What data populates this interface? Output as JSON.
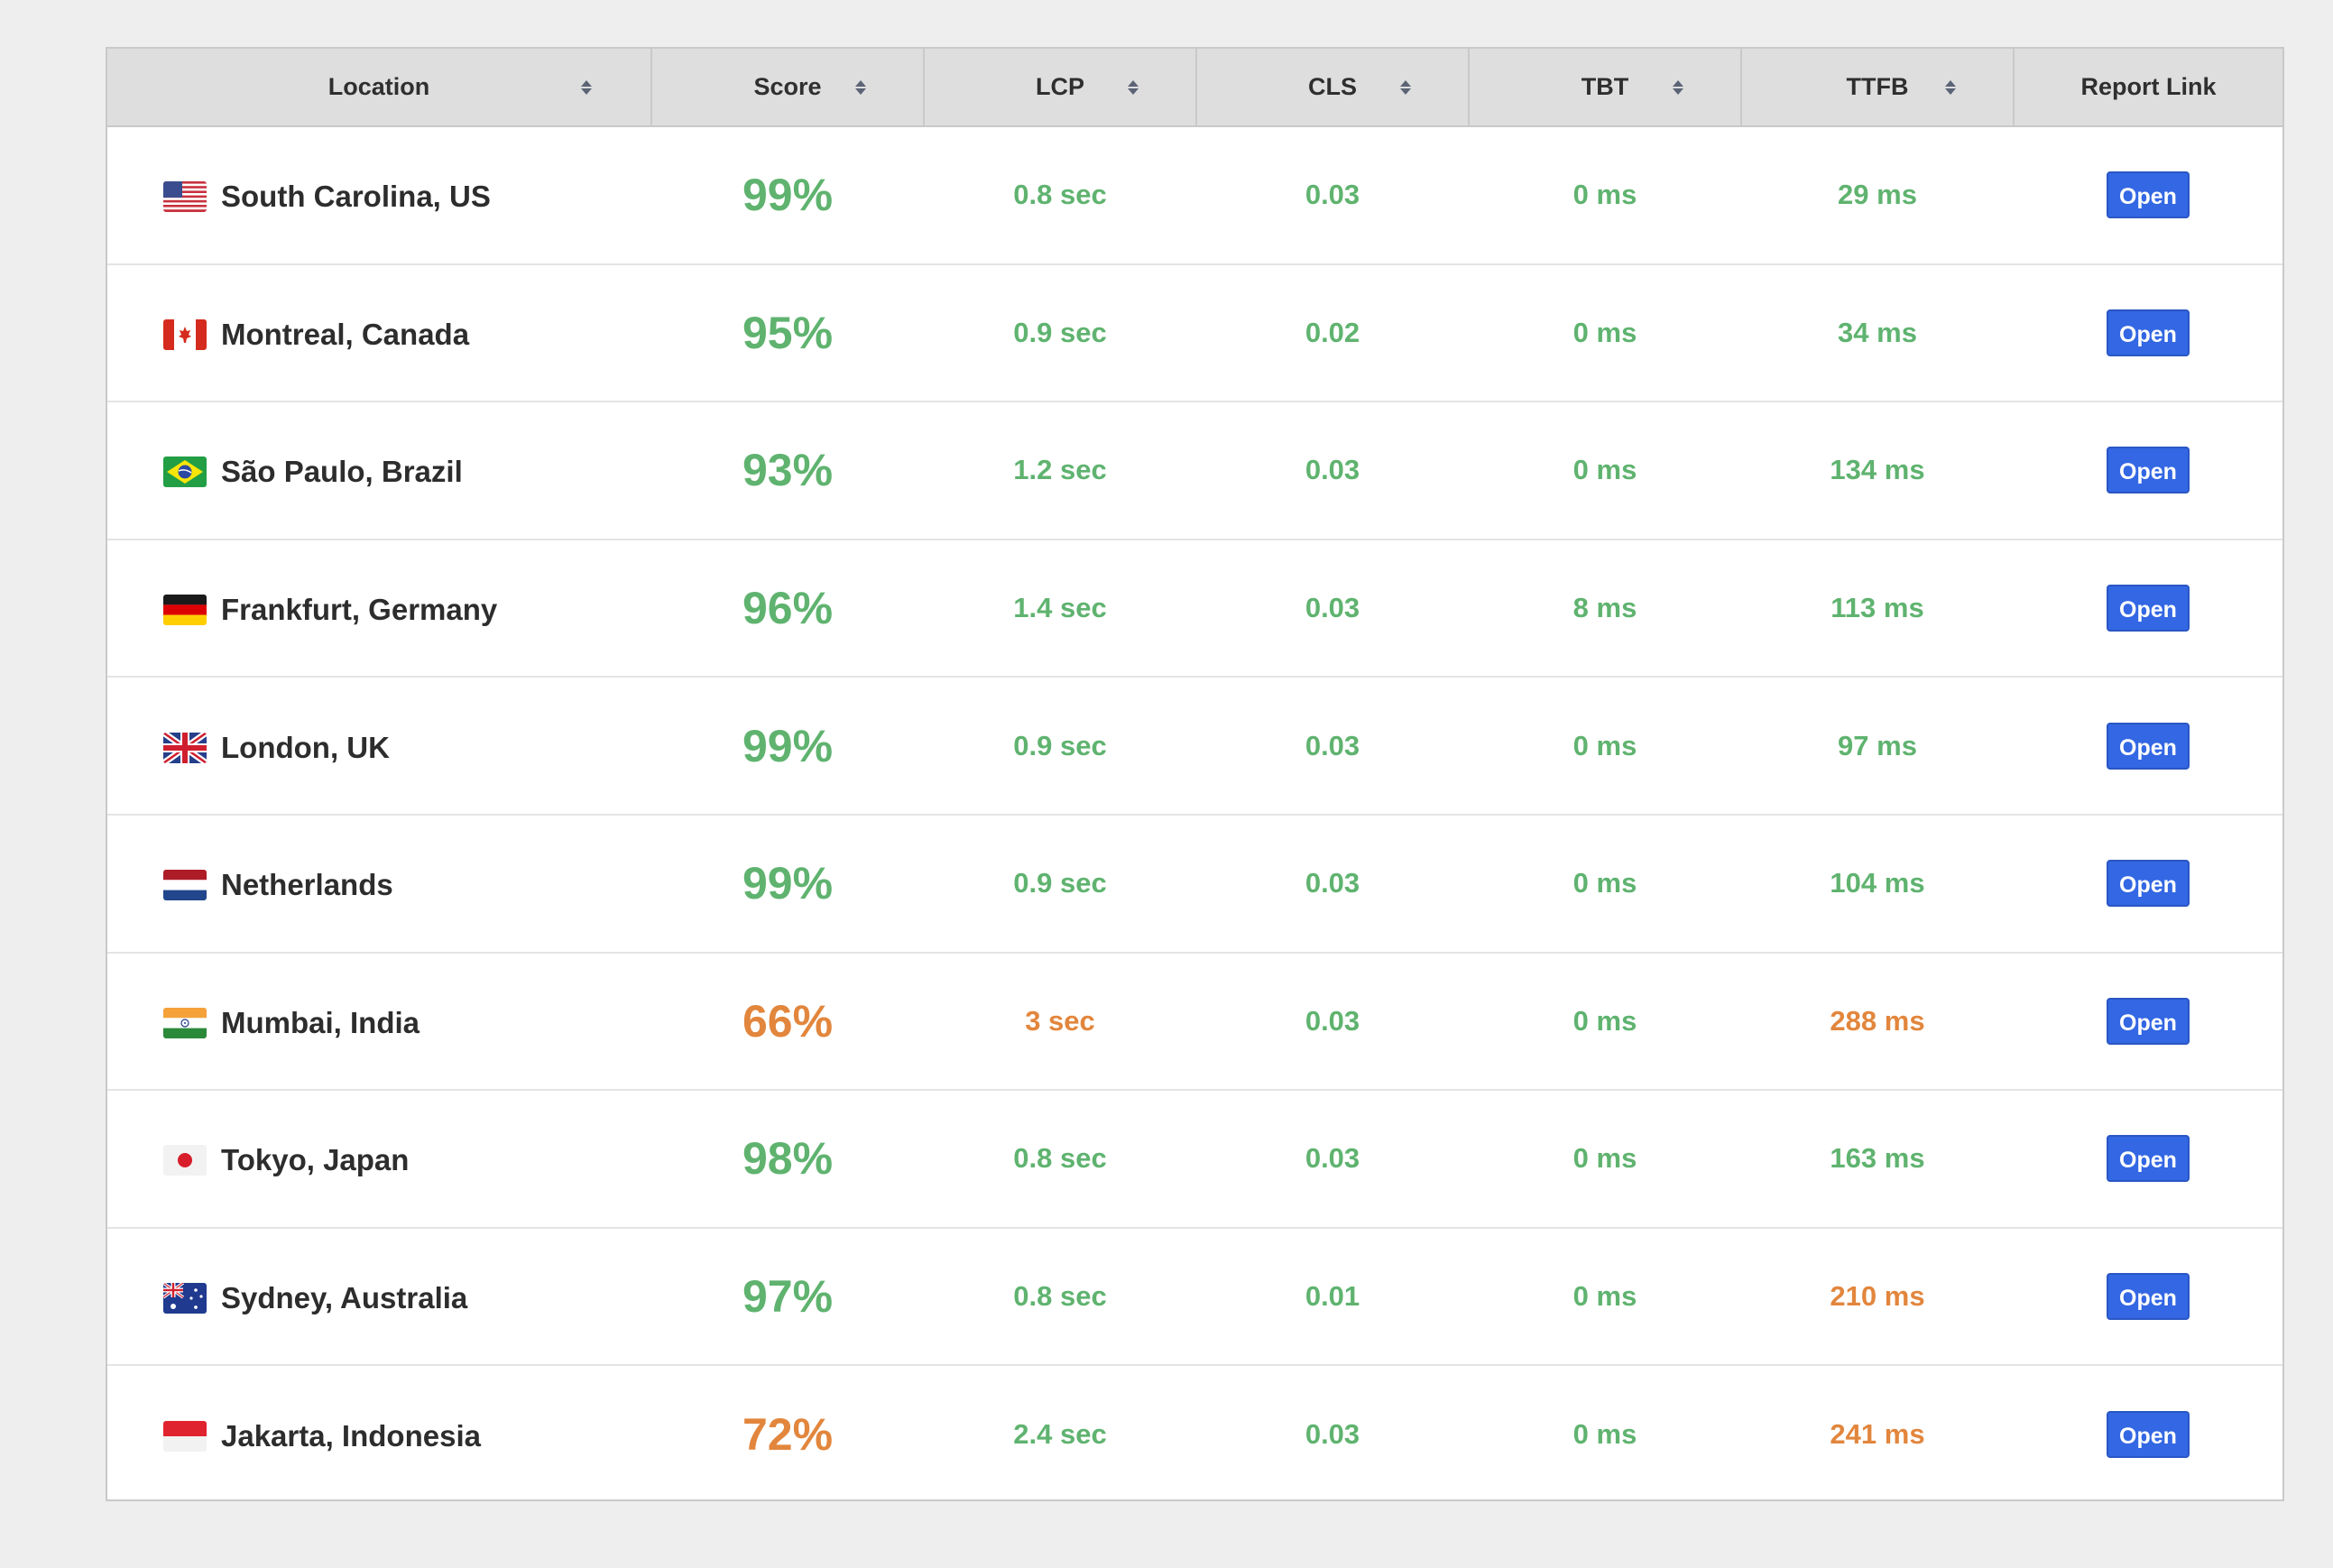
{
  "table": {
    "headers": {
      "location": "Location",
      "score": "Score",
      "lcp": "LCP",
      "cls": "CLS",
      "tbt": "TBT",
      "ttfb": "TTFB",
      "report": "Report Link"
    },
    "colors": {
      "good": "#5fb36f",
      "warn": "#e2863d",
      "button": "#3367e3"
    },
    "rows": [
      {
        "flag": "flag-us-icon",
        "location": "South Carolina, US",
        "score": "99%",
        "score_status": "good",
        "lcp": "0.8 sec",
        "lcp_status": "good",
        "cls": "0.03",
        "cls_status": "good",
        "tbt": "0 ms",
        "tbt_status": "good",
        "ttfb": "29 ms",
        "ttfb_status": "good",
        "report": "Open"
      },
      {
        "flag": "flag-canada-icon",
        "location": "Montreal, Canada",
        "score": "95%",
        "score_status": "good",
        "lcp": "0.9 sec",
        "lcp_status": "good",
        "cls": "0.02",
        "cls_status": "good",
        "tbt": "0 ms",
        "tbt_status": "good",
        "ttfb": "34 ms",
        "ttfb_status": "good",
        "report": "Open"
      },
      {
        "flag": "flag-brazil-icon",
        "location": "São Paulo, Brazil",
        "score": "93%",
        "score_status": "good",
        "lcp": "1.2 sec",
        "lcp_status": "good",
        "cls": "0.03",
        "cls_status": "good",
        "tbt": "0 ms",
        "tbt_status": "good",
        "ttfb": "134 ms",
        "ttfb_status": "good",
        "report": "Open"
      },
      {
        "flag": "flag-germany-icon",
        "location": "Frankfurt, Germany",
        "score": "96%",
        "score_status": "good",
        "lcp": "1.4 sec",
        "lcp_status": "good",
        "cls": "0.03",
        "cls_status": "good",
        "tbt": "8 ms",
        "tbt_status": "good",
        "ttfb": "113 ms",
        "ttfb_status": "good",
        "report": "Open"
      },
      {
        "flag": "flag-uk-icon",
        "location": "London, UK",
        "score": "99%",
        "score_status": "good",
        "lcp": "0.9 sec",
        "lcp_status": "good",
        "cls": "0.03",
        "cls_status": "good",
        "tbt": "0 ms",
        "tbt_status": "good",
        "ttfb": "97 ms",
        "ttfb_status": "good",
        "report": "Open"
      },
      {
        "flag": "flag-netherlands-icon",
        "location": "Netherlands",
        "score": "99%",
        "score_status": "good",
        "lcp": "0.9 sec",
        "lcp_status": "good",
        "cls": "0.03",
        "cls_status": "good",
        "tbt": "0 ms",
        "tbt_status": "good",
        "ttfb": "104 ms",
        "ttfb_status": "good",
        "report": "Open"
      },
      {
        "flag": "flag-india-icon",
        "location": "Mumbai, India",
        "score": "66%",
        "score_status": "warn",
        "lcp": "3 sec",
        "lcp_status": "warn",
        "cls": "0.03",
        "cls_status": "good",
        "tbt": "0 ms",
        "tbt_status": "good",
        "ttfb": "288 ms",
        "ttfb_status": "warn",
        "report": "Open"
      },
      {
        "flag": "flag-japan-icon",
        "location": "Tokyo, Japan",
        "score": "98%",
        "score_status": "good",
        "lcp": "0.8 sec",
        "lcp_status": "good",
        "cls": "0.03",
        "cls_status": "good",
        "tbt": "0 ms",
        "tbt_status": "good",
        "ttfb": "163 ms",
        "ttfb_status": "good",
        "report": "Open"
      },
      {
        "flag": "flag-australia-icon",
        "location": "Sydney, Australia",
        "score": "97%",
        "score_status": "good",
        "lcp": "0.8 sec",
        "lcp_status": "good",
        "cls": "0.01",
        "cls_status": "good",
        "tbt": "0 ms",
        "tbt_status": "good",
        "ttfb": "210 ms",
        "ttfb_status": "warn",
        "report": "Open"
      },
      {
        "flag": "flag-indonesia-icon",
        "location": "Jakarta, Indonesia",
        "score": "72%",
        "score_status": "warn",
        "lcp": "2.4 sec",
        "lcp_status": "good",
        "cls": "0.03",
        "cls_status": "good",
        "tbt": "0 ms",
        "tbt_status": "good",
        "ttfb": "241 ms",
        "ttfb_status": "warn",
        "report": "Open"
      }
    ]
  }
}
